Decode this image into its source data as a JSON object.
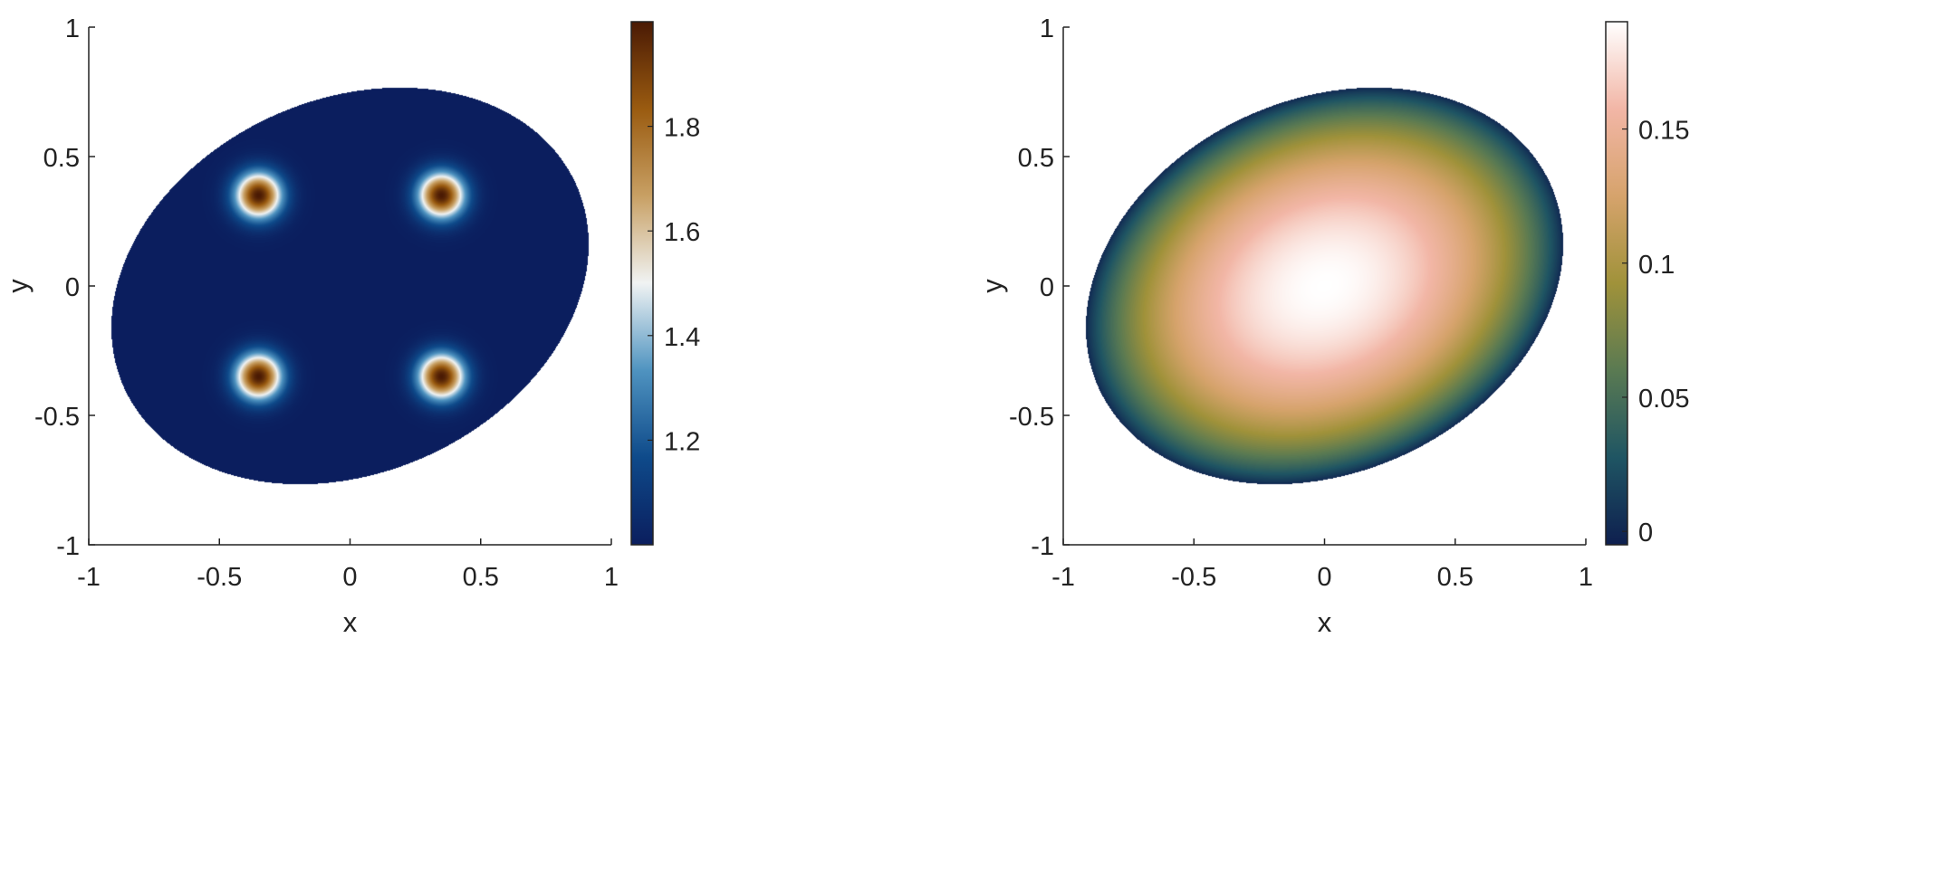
{
  "chart_data": [
    {
      "type": "heatmap",
      "title": "",
      "xlabel": "x",
      "ylabel": "y",
      "xlim": [
        -1,
        1
      ],
      "ylim": [
        -1,
        1
      ],
      "x_ticks": [
        "-1",
        "-0.5",
        "0",
        "0.5",
        "1"
      ],
      "y_ticks": [
        "-1",
        "-0.5",
        "0",
        "0.5",
        "1"
      ],
      "x_tick_values": [
        -1,
        -0.5,
        0,
        0.5,
        1
      ],
      "y_tick_values": [
        -1,
        -0.5,
        0,
        0.5,
        1
      ],
      "domain": {
        "shape": "ellipse",
        "center": [
          0,
          0
        ],
        "semi_axes": [
          0.95,
          0.72
        ],
        "rotation_deg": 25
      },
      "peaks": [
        {
          "x": -0.35,
          "y": 0.35,
          "value": 2.0
        },
        {
          "x": 0.35,
          "y": 0.35,
          "value": 2.0
        },
        {
          "x": -0.35,
          "y": -0.35,
          "value": 2.0
        },
        {
          "x": 0.35,
          "y": -0.35,
          "value": 2.0
        }
      ],
      "background_value": 1.0,
      "colorbar": {
        "min": 1.0,
        "max": 2.0,
        "tick_values": [
          1.2,
          1.4,
          1.6,
          1.8
        ],
        "tick_labels": [
          "1.2",
          "1.4",
          "1.6",
          "1.8"
        ],
        "colormap": [
          "#0b1e5e",
          "#0e4a8a",
          "#4f93c0",
          "#f0f3f3",
          "#c8a064",
          "#9a5b10",
          "#4a1a04"
        ]
      },
      "grid": false
    },
    {
      "type": "heatmap",
      "title": "",
      "xlabel": "x",
      "ylabel": "y",
      "xlim": [
        -1,
        1
      ],
      "ylim": [
        -1,
        1
      ],
      "x_ticks": [
        "-1",
        "-0.5",
        "0",
        "0.5",
        "1"
      ],
      "y_ticks": [
        "-1",
        "-0.5",
        "0",
        "0.5",
        "1"
      ],
      "x_tick_values": [
        -1,
        -0.5,
        0,
        0.5,
        1
      ],
      "y_tick_values": [
        -1,
        -0.5,
        0,
        0.5,
        1
      ],
      "domain": {
        "shape": "ellipse",
        "center": [
          0,
          0
        ],
        "semi_axes": [
          0.95,
          0.72
        ],
        "rotation_deg": 25
      },
      "peak_value": 0.19,
      "boundary_value": 0.0,
      "colorbar": {
        "min": -0.005,
        "max": 0.19,
        "tick_values": [
          0,
          0.05,
          0.1,
          0.15
        ],
        "tick_labels": [
          "0",
          "0.05",
          "0.1",
          "0.15"
        ],
        "colormap": [
          "#0e1f4f",
          "#1f5563",
          "#5a7a52",
          "#a0923a",
          "#d6a36c",
          "#f2b6a6",
          "#ffffff"
        ]
      },
      "grid": false
    }
  ]
}
